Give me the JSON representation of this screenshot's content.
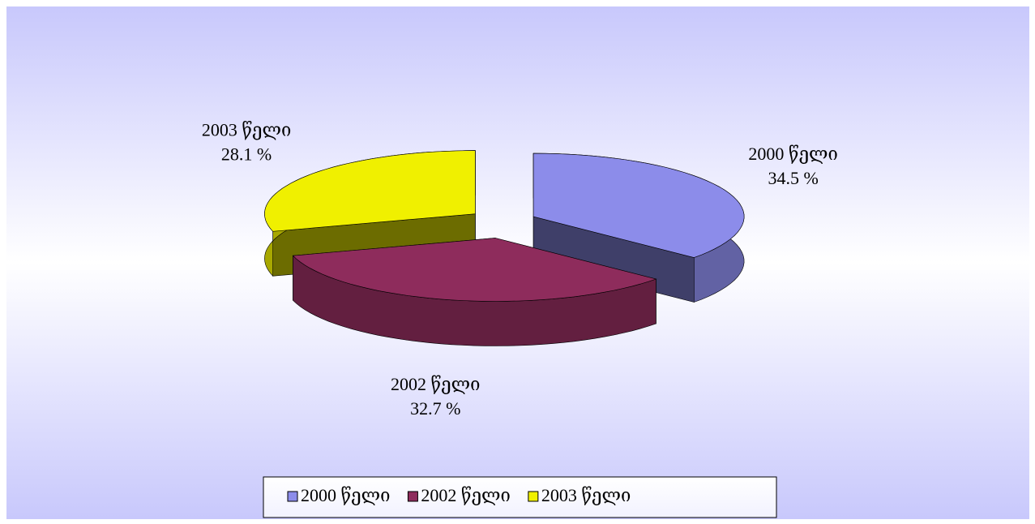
{
  "chart_data": {
    "type": "pie",
    "view": "3d-exploded",
    "categories": [
      "2000 წელი",
      "2002 წელი",
      "2003 წელი"
    ],
    "values": [
      34.5,
      32.7,
      28.1
    ],
    "value_labels": [
      "34.5 %",
      "32.7 %",
      "28.1 %"
    ],
    "colors": [
      "#8c8cea",
      "#8e2c5c",
      "#f0f000"
    ],
    "legend": "bottom"
  }
}
